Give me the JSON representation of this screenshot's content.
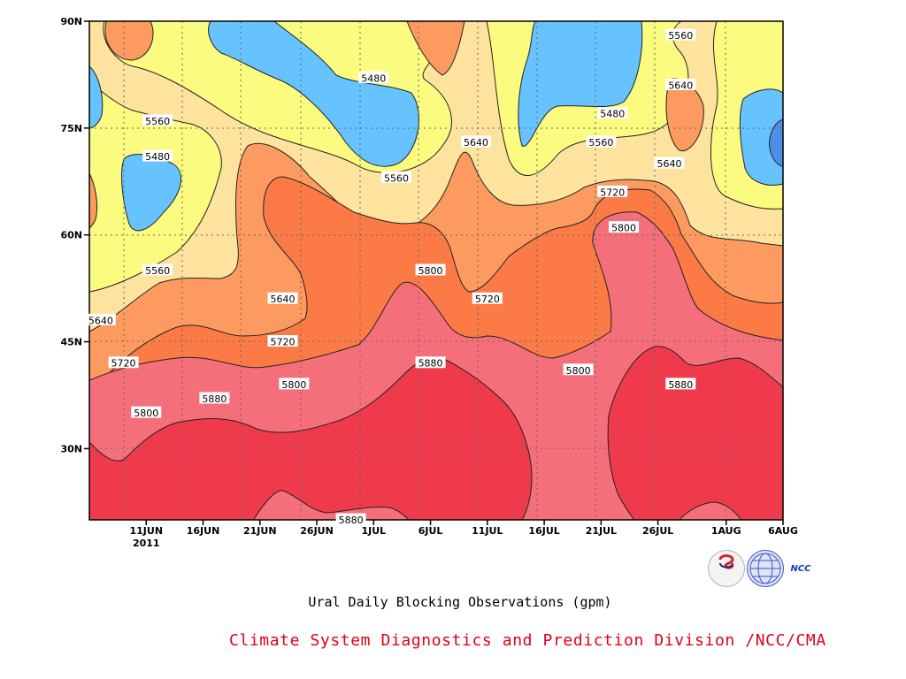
{
  "chart_data": {
    "type": "heatmap",
    "subtype": "filled-contour",
    "title": "Ural Daily Blocking Observations (gpm)",
    "credit": "Climate System Diagnostics and Prediction Division /NCC/CMA",
    "xlabel": "",
    "ylabel": "",
    "x_ticks": [
      "11JUN",
      "16JUN",
      "21JUN",
      "26JUN",
      "1JUL",
      "6JUL",
      "11JUL",
      "16JUL",
      "21JUL",
      "26JUL",
      "1AUG",
      "6AUG"
    ],
    "x_year_label": "2011",
    "y_ticks": [
      "30N",
      "45N",
      "60N",
      "75N",
      "90N"
    ],
    "y_range": [
      20,
      90
    ],
    "grid": true,
    "colors": {
      "below_5480": "#4f8ee8",
      "5480_5560": "#66c3ff",
      "5560_5640": "#fbfb80",
      "5640_5720": "#fee39e",
      "5720_5800": "#fc9a60",
      "5800_5880": "#fb7a45",
      "5880_5960": "#f56f7b",
      "above_5960": "#ef3a4c"
    },
    "contour_labels": [
      {
        "value": "5480",
        "date": "2011-06-12",
        "lat": 71
      },
      {
        "value": "5480",
        "date": "2011-07-01",
        "lat": 82
      },
      {
        "value": "5480",
        "date": "2011-07-22",
        "lat": 77
      },
      {
        "value": "5560",
        "date": "2011-06-12",
        "lat": 76
      },
      {
        "value": "5560",
        "date": "2011-06-12",
        "lat": 55
      },
      {
        "value": "5560",
        "date": "2011-07-03",
        "lat": 68
      },
      {
        "value": "5560",
        "date": "2011-07-21",
        "lat": 73
      },
      {
        "value": "5560",
        "date": "2011-07-28",
        "lat": 88
      },
      {
        "value": "5640",
        "date": "2011-06-07",
        "lat": 48
      },
      {
        "value": "5640",
        "date": "2011-06-23",
        "lat": 51
      },
      {
        "value": "5640",
        "date": "2011-07-10",
        "lat": 73
      },
      {
        "value": "5640",
        "date": "2011-07-27",
        "lat": 70
      },
      {
        "value": "5640",
        "date": "2011-07-28",
        "lat": 81
      },
      {
        "value": "5720",
        "date": "2011-06-09",
        "lat": 42
      },
      {
        "value": "5720",
        "date": "2011-06-23",
        "lat": 45
      },
      {
        "value": "5720",
        "date": "2011-07-11",
        "lat": 51
      },
      {
        "value": "5720",
        "date": "2011-07-22",
        "lat": 66
      },
      {
        "value": "5800",
        "date": "2011-06-11",
        "lat": 35
      },
      {
        "value": "5800",
        "date": "2011-06-24",
        "lat": 39
      },
      {
        "value": "5800",
        "date": "2011-07-06",
        "lat": 55
      },
      {
        "value": "5800",
        "date": "2011-07-19",
        "lat": 41
      },
      {
        "value": "5800",
        "date": "2011-07-23",
        "lat": 61
      },
      {
        "value": "5880",
        "date": "2011-06-17",
        "lat": 37
      },
      {
        "value": "5880",
        "date": "2011-07-06",
        "lat": 42
      },
      {
        "value": "5880",
        "date": "2011-07-28",
        "lat": 39
      },
      {
        "value": "5880",
        "date": "2011-06-29",
        "lat": 20
      }
    ]
  },
  "logos": {
    "bcc": "BCC",
    "ncc": "NCC"
  }
}
